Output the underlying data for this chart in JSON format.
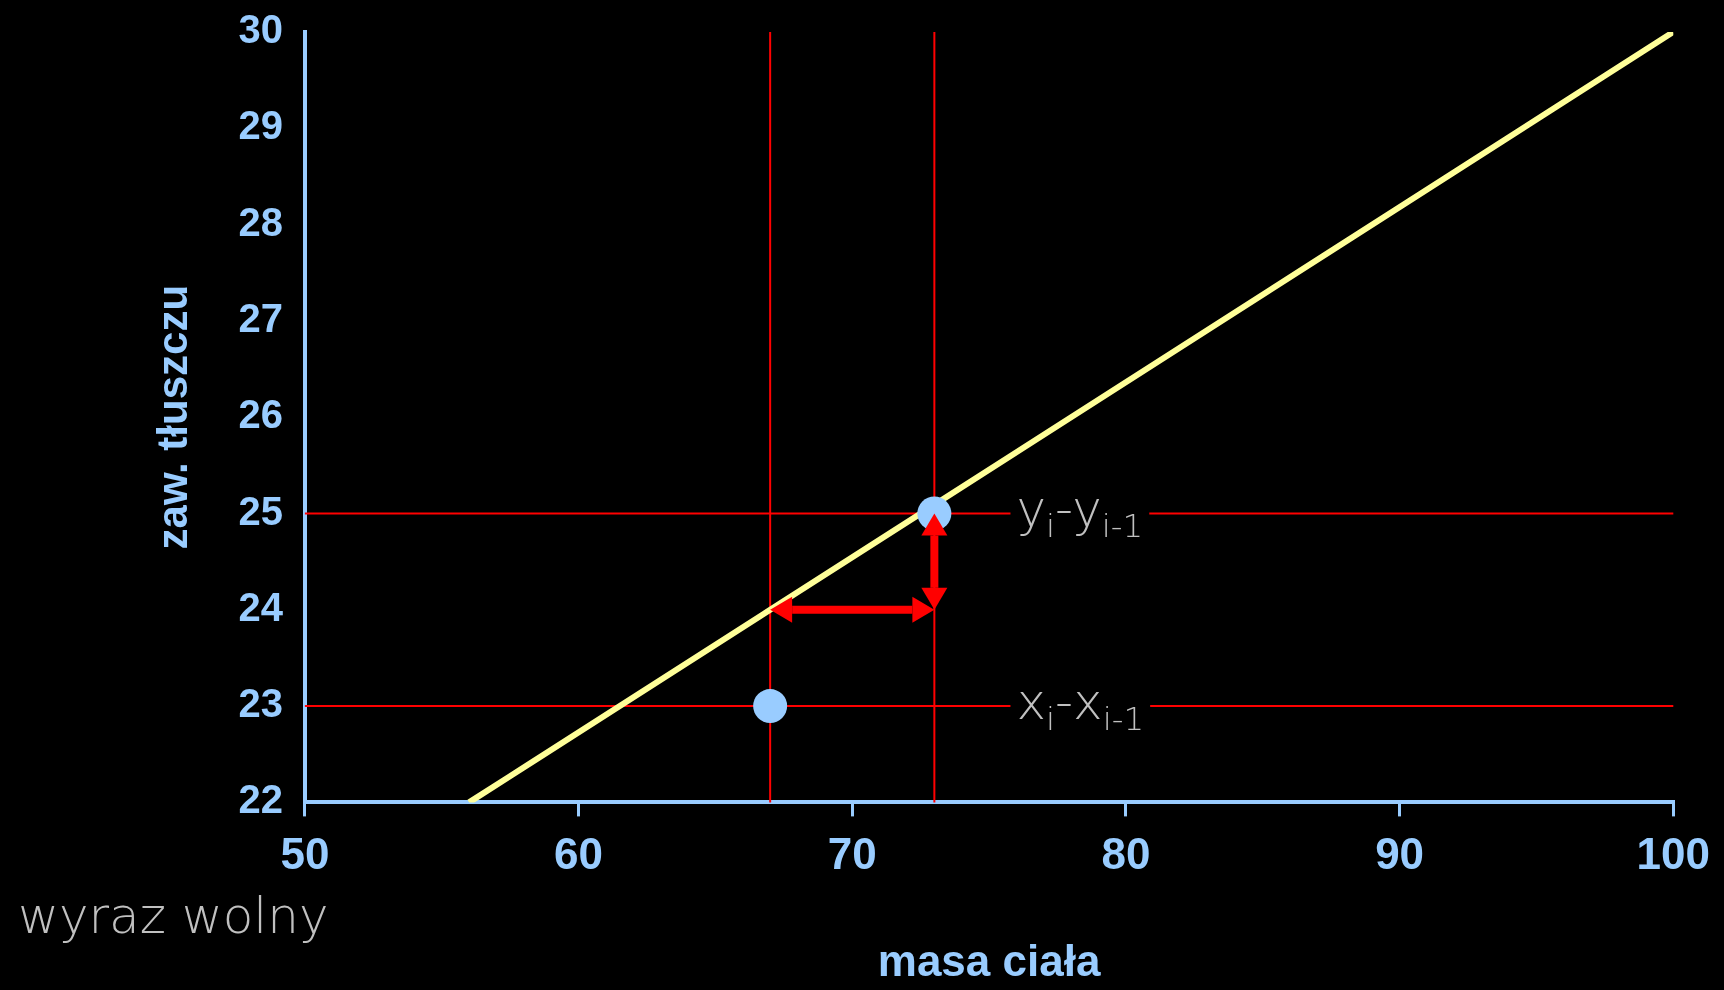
{
  "chart_data": {
    "type": "scatter",
    "xlabel": "masa ciała",
    "ylabel": "zaw. tłuszczu",
    "xlim": [
      50,
      100
    ],
    "ylim": [
      22,
      30
    ],
    "xticks": [
      50,
      60,
      70,
      80,
      90,
      100
    ],
    "yticks": [
      22,
      23,
      24,
      25,
      26,
      27,
      28,
      29,
      30
    ],
    "grid": false,
    "legend": false,
    "marker": "circle",
    "series": [
      {
        "type": "scatter",
        "color": "#99ccff",
        "x": [
          67,
          73
        ],
        "values": [
          23,
          25
        ]
      },
      {
        "type": "line",
        "color": "#ffff99",
        "x": [
          56,
          67,
          100
        ],
        "values": [
          22,
          24,
          30
        ],
        "marker": "none"
      }
    ],
    "ref_lines": [
      {
        "axis": "x",
        "value": 67,
        "color": "#ff0000"
      },
      {
        "axis": "x",
        "value": 73,
        "color": "#ff0000"
      },
      {
        "axis": "y",
        "value": 25,
        "color": "#ff0000"
      },
      {
        "axis": "y",
        "value": 23,
        "color": "#ff0000"
      }
    ],
    "annotations": [
      {
        "text": "y$_{i}$-y$_{i-1}$",
        "x": 76,
        "y": 25
      },
      {
        "text": "x$_{i}$-x$_{i-1}$",
        "x": 76,
        "y": 23
      },
      "wyraz wolny"
    ]
  }
}
